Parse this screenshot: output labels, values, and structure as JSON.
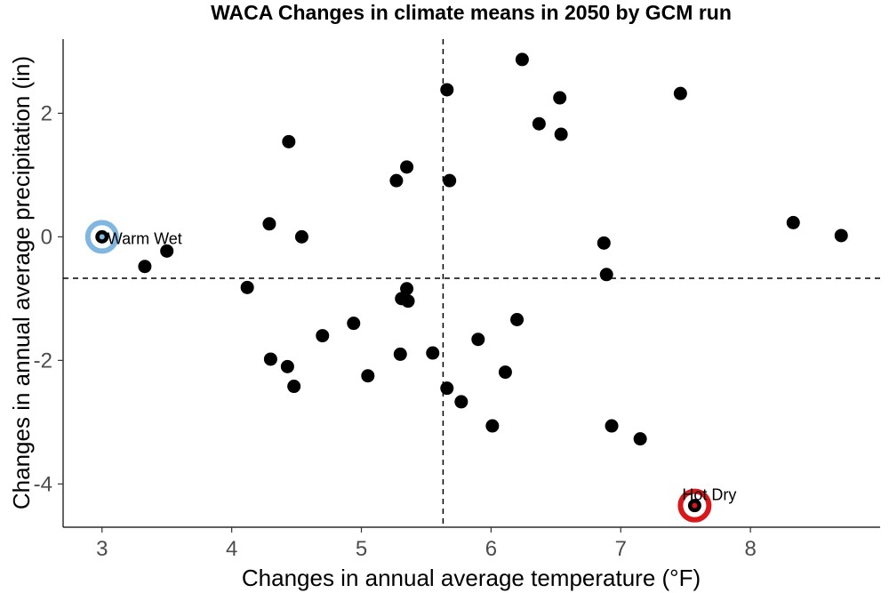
{
  "chart_data": {
    "type": "scatter",
    "title": "WACA Changes in climate means in 2050 by GCM run",
    "xlabel": "Changes in annual average temperature (°F)",
    "ylabel": "Changes in annual average precipitation (in)",
    "xlim": [
      2.7,
      9.0
    ],
    "ylim": [
      -4.7,
      3.2
    ],
    "x_ticks": [
      "3",
      "4",
      "5",
      "6",
      "7",
      "8"
    ],
    "y_ticks": [
      "-4",
      "-2",
      "0",
      "2"
    ],
    "x_tick_values": [
      3,
      4,
      5,
      6,
      7,
      8
    ],
    "y_tick_values": [
      -4,
      -2,
      0,
      2
    ],
    "grid": false,
    "reference_lines": {
      "x": 5.63,
      "y": -0.67
    },
    "points": [
      {
        "x": 3.0,
        "y": 0.0
      },
      {
        "x": 3.33,
        "y": -0.48
      },
      {
        "x": 3.5,
        "y": -0.23
      },
      {
        "x": 4.12,
        "y": -0.82
      },
      {
        "x": 4.29,
        "y": 0.21
      },
      {
        "x": 4.3,
        "y": -1.98
      },
      {
        "x": 4.43,
        "y": -2.1
      },
      {
        "x": 4.44,
        "y": 1.54
      },
      {
        "x": 4.48,
        "y": -2.42
      },
      {
        "x": 4.54,
        "y": 0.0
      },
      {
        "x": 4.7,
        "y": -1.6
      },
      {
        "x": 4.94,
        "y": -1.4
      },
      {
        "x": 5.05,
        "y": -2.25
      },
      {
        "x": 5.27,
        "y": 0.91
      },
      {
        "x": 5.3,
        "y": -1.9
      },
      {
        "x": 5.31,
        "y": -1.0
      },
      {
        "x": 5.35,
        "y": -0.84
      },
      {
        "x": 5.35,
        "y": 1.13
      },
      {
        "x": 5.36,
        "y": -1.04
      },
      {
        "x": 5.55,
        "y": -1.88
      },
      {
        "x": 5.66,
        "y": 2.38
      },
      {
        "x": 5.66,
        "y": -2.45
      },
      {
        "x": 5.68,
        "y": 0.91
      },
      {
        "x": 5.77,
        "y": -2.67
      },
      {
        "x": 5.9,
        "y": -1.66
      },
      {
        "x": 6.01,
        "y": -3.06
      },
      {
        "x": 6.11,
        "y": -2.19
      },
      {
        "x": 6.2,
        "y": -1.34
      },
      {
        "x": 6.24,
        "y": 2.87
      },
      {
        "x": 6.37,
        "y": 1.83
      },
      {
        "x": 6.53,
        "y": 2.25
      },
      {
        "x": 6.54,
        "y": 1.66
      },
      {
        "x": 6.87,
        "y": -0.1
      },
      {
        "x": 6.89,
        "y": -0.61
      },
      {
        "x": 6.93,
        "y": -3.06
      },
      {
        "x": 7.15,
        "y": -3.27
      },
      {
        "x": 7.46,
        "y": 2.32
      },
      {
        "x": 7.57,
        "y": -4.35
      },
      {
        "x": 8.33,
        "y": 0.23
      },
      {
        "x": 8.7,
        "y": 0.02
      }
    ],
    "highlights": [
      {
        "label": "Warm Wet",
        "x": 3.0,
        "y": 0.0,
        "color": "#7fb7e0",
        "label_position": "right"
      },
      {
        "label": "Hot Dry",
        "x": 7.57,
        "y": -4.35,
        "color": "#d7191c",
        "label_position": "top-right"
      }
    ],
    "point_color": "#000000"
  }
}
